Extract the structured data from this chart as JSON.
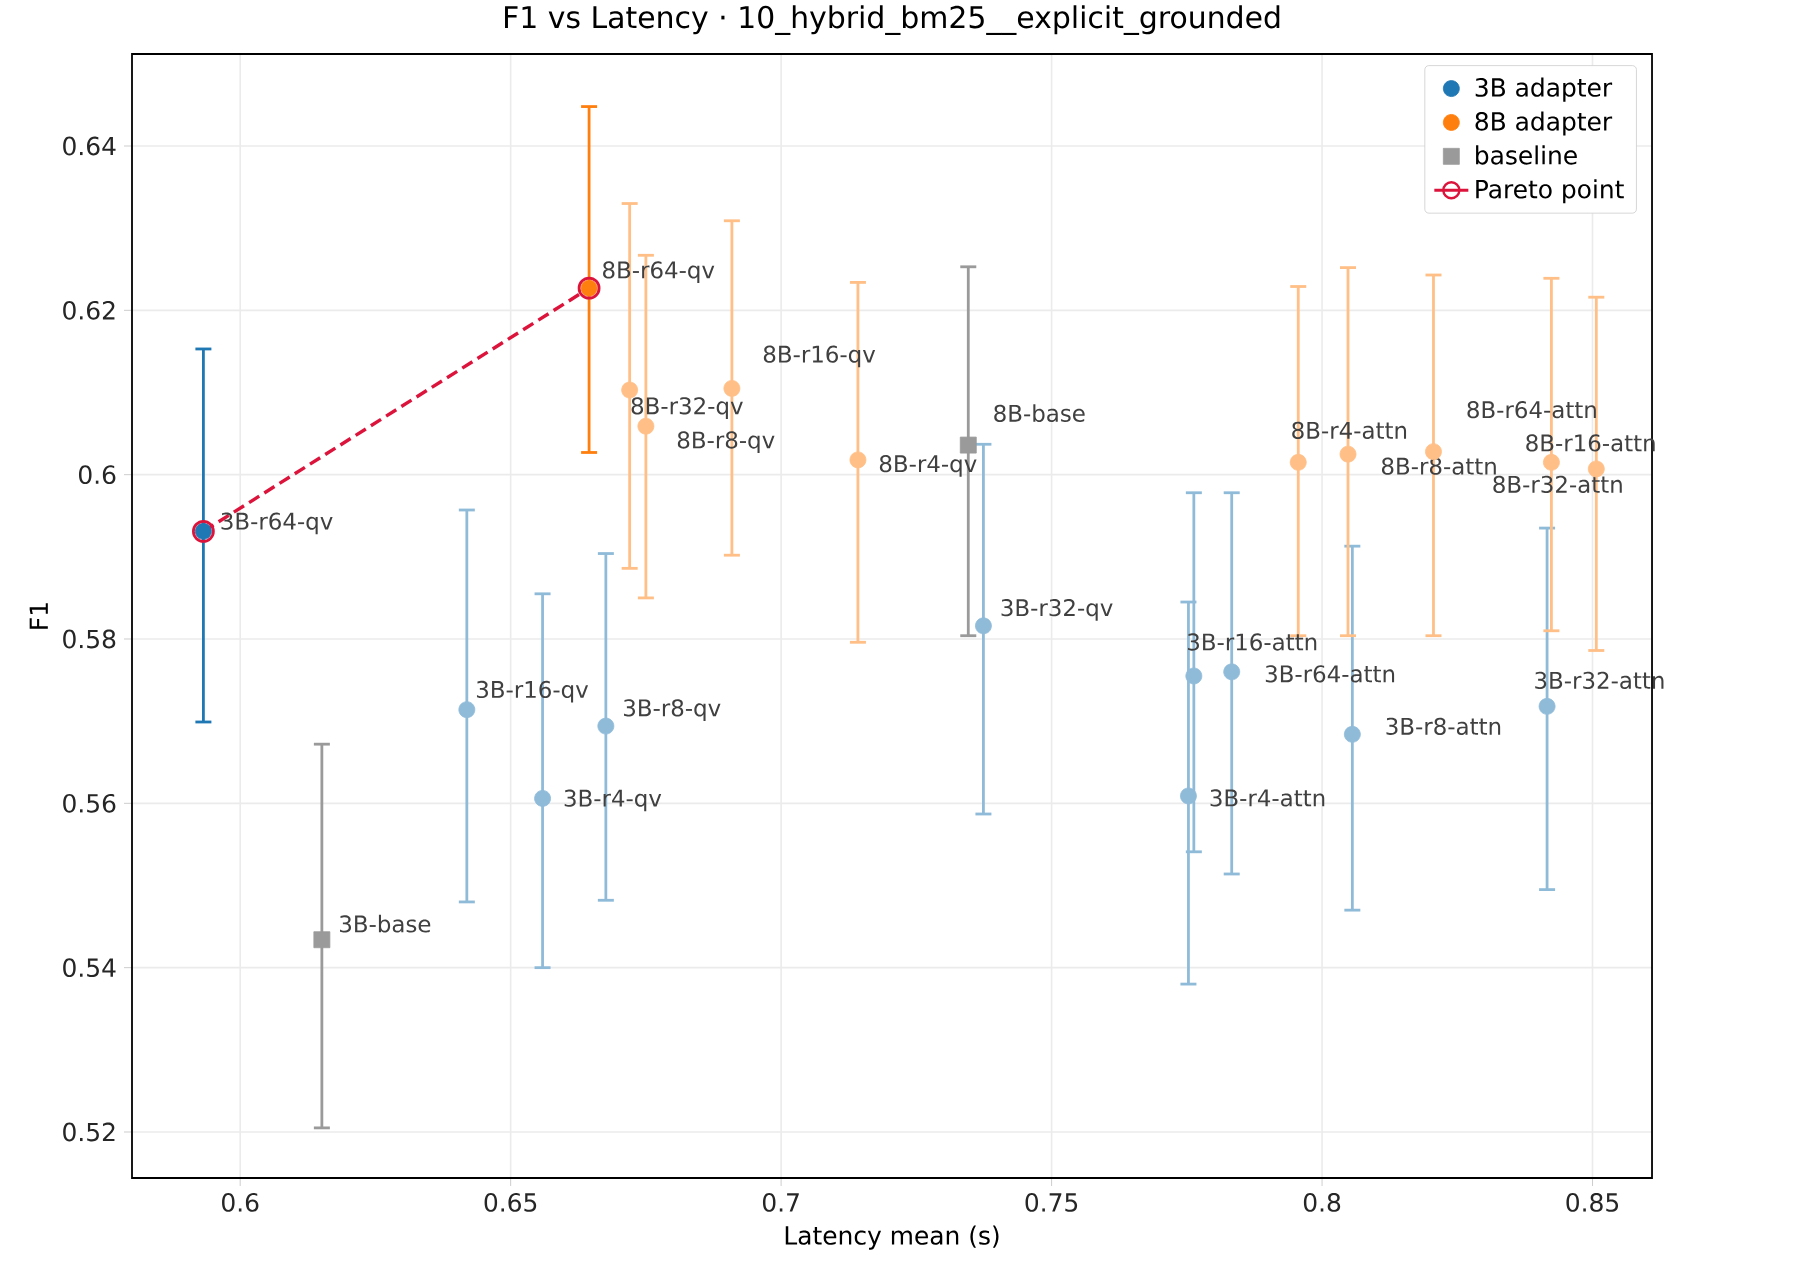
{
  "chart_data": {
    "type": "scatter",
    "title": "F1 vs Latency · 10_hybrid_bm25__explicit_grounded",
    "xlabel": "Latency mean (s)",
    "ylabel": "F1",
    "xlim": [
      0.58,
      0.861
    ],
    "ylim": [
      0.5144,
      0.6512
    ],
    "xticks": [
      0.6,
      0.65,
      0.7,
      0.75,
      0.8,
      0.85
    ],
    "yticks": [
      0.52,
      0.54,
      0.56,
      0.58,
      0.6,
      0.62,
      0.64
    ],
    "grid": true,
    "legend": "top right",
    "series": [
      {
        "name": "3B adapter",
        "marker": "circle",
        "color": "#1f77b4",
        "colors": [
          "#1f77b4",
          "#8fbbd9",
          "#8fbbd9",
          "#8fbbd9",
          "#8fbbd9",
          "#8fbbd9",
          "#8fbbd9",
          "#8fbbd9",
          "#8fbbd9",
          "#8fbbd9"
        ],
        "x": [
          0.5932,
          0.6419,
          0.6559,
          0.6676,
          0.7374,
          0.7763,
          0.7753,
          0.7833,
          0.8056,
          0.8416
        ],
        "values": [
          0.5931,
          0.5714,
          0.5606,
          0.5694,
          0.5816,
          0.5755,
          0.5609,
          0.576,
          0.5684,
          0.5718
        ],
        "errors": [
          [
            0.5699,
            0.6153
          ],
          [
            0.548,
            0.5957
          ],
          [
            0.54,
            0.5855
          ],
          [
            0.5482,
            0.5904
          ],
          [
            0.5587,
            0.6037
          ],
          [
            0.5541,
            0.5978
          ],
          [
            0.538,
            0.5845
          ],
          [
            0.5514,
            0.5978
          ],
          [
            0.547,
            0.5913
          ],
          [
            0.5495,
            0.5935
          ]
        ]
      },
      {
        "name": "8B adapter",
        "marker": "circle",
        "color": "#ff7f0e",
        "colors": [
          "#ff7f0e",
          "#ffbf86",
          "#ffbf86",
          "#ffbf86",
          "#ffbf86",
          "#ffbf86",
          "#ffbf86",
          "#ffbf86",
          "#ffbf86",
          "#ffbf86"
        ],
        "x": [
          0.6645,
          0.672,
          0.675,
          0.6909,
          0.7142,
          0.7956,
          0.8048,
          0.8206,
          0.8424,
          0.8507
        ],
        "values": [
          0.6227,
          0.6103,
          0.6059,
          0.6105,
          0.6018,
          0.6015,
          0.6025,
          0.6028,
          0.6015,
          0.6007
        ],
        "errors": [
          [
            0.6027,
            0.6448
          ],
          [
            0.5886,
            0.633
          ],
          [
            0.585,
            0.6267
          ],
          [
            0.5902,
            0.6309
          ],
          [
            0.5796,
            0.6234
          ],
          [
            0.5804,
            0.6229
          ],
          [
            0.5804,
            0.6252
          ],
          [
            0.5804,
            0.6243
          ],
          [
            0.581,
            0.6239
          ],
          [
            0.5786,
            0.6216
          ]
        ]
      },
      {
        "name": "baseline",
        "marker": "square",
        "color": "#9a9a9a",
        "x": [
          0.6151,
          0.7346
        ],
        "values": [
          0.5434,
          0.6036
        ],
        "errors": [
          [
            0.5205,
            0.5672
          ],
          [
            0.5804,
            0.6253
          ]
        ]
      },
      {
        "name": "Pareto point",
        "type": "line",
        "marker": "circle",
        "line_style": "dashed",
        "color": "#dc143c",
        "x": [
          0.5932,
          0.6645
        ],
        "values": [
          0.5931,
          0.6227
        ]
      }
    ],
    "annotations": [
      {
        "text": "3B-r64-qv",
        "x": 0.5932,
        "y": 0.5931
      },
      {
        "text": "3B-r16-qv",
        "x": 0.6419,
        "y": 0.5714
      },
      {
        "text": "3B-r4-qv",
        "x": 0.6559,
        "y": 0.5606
      },
      {
        "text": "3B-r8-qv",
        "x": 0.6676,
        "y": 0.5694
      },
      {
        "text": "3B-r32-qv",
        "x": 0.7374,
        "y": 0.5816
      },
      {
        "text": "3B-r16-attn",
        "x": 0.7763,
        "y": 0.5755
      },
      {
        "text": "3B-r4-attn",
        "x": 0.7753,
        "y": 0.5609
      },
      {
        "text": "3B-r64-attn",
        "x": 0.7833,
        "y": 0.576
      },
      {
        "text": "3B-r8-attn",
        "x": 0.8056,
        "y": 0.5684
      },
      {
        "text": "3B-r32-attn",
        "x": 0.8416,
        "y": 0.5718
      },
      {
        "text": "8B-r64-qv",
        "x": 0.6645,
        "y": 0.6227
      },
      {
        "text": "8B-r32-qv",
        "x": 0.672,
        "y": 0.6103
      },
      {
        "text": "8B-r8-qv",
        "x": 0.675,
        "y": 0.6059
      },
      {
        "text": "8B-r16-qv",
        "x": 0.6909,
        "y": 0.6105
      },
      {
        "text": "8B-r4-qv",
        "x": 0.7142,
        "y": 0.6018
      },
      {
        "text": "8B-r4-attn",
        "x": 0.7956,
        "y": 0.6015
      },
      {
        "text": "8B-r8-attn",
        "x": 0.8048,
        "y": 0.6025
      },
      {
        "text": "8B-r64-attn",
        "x": 0.8206,
        "y": 0.6028
      },
      {
        "text": "8B-r32-attn",
        "x": 0.8424,
        "y": 0.6015
      },
      {
        "text": "8B-r16-attn",
        "x": 0.8507,
        "y": 0.6007
      },
      {
        "text": "3B-base",
        "x": 0.6151,
        "y": 0.5434
      },
      {
        "text": "8B-base",
        "x": 0.7346,
        "y": 0.6036
      }
    ]
  }
}
